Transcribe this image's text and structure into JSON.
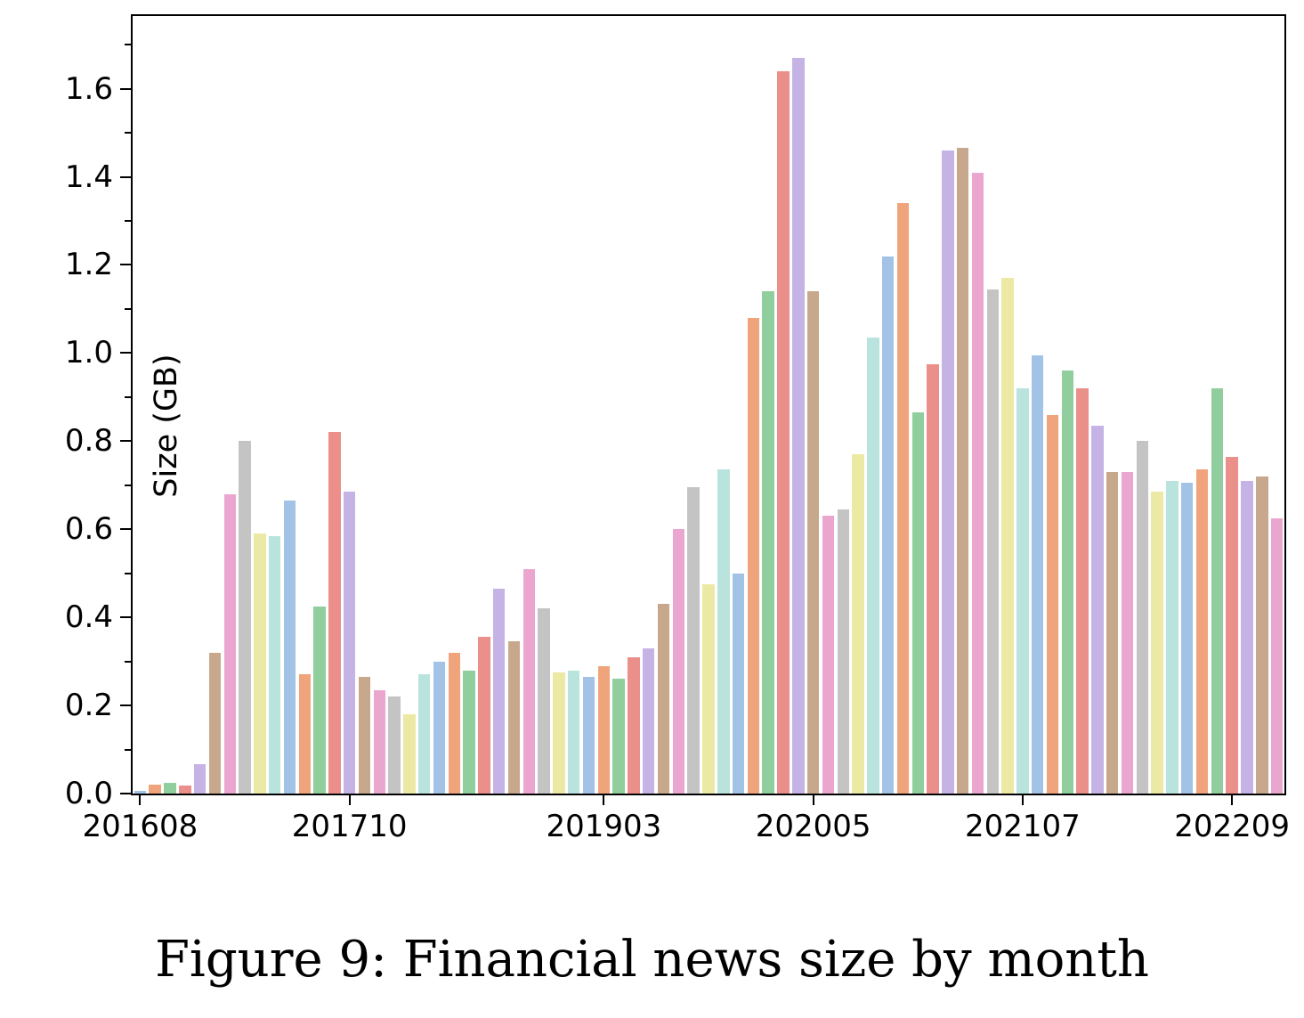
{
  "figure": {
    "caption": "Figure 9: Financial news size by month"
  },
  "chart_data": {
    "type": "bar",
    "title": "",
    "xlabel": "",
    "ylabel": "Size (GB)",
    "ylim": [
      0,
      1.765
    ],
    "grid": false,
    "legend": "none",
    "ytick_labels": [
      "0.0",
      "0.2",
      "0.4",
      "0.6",
      "0.8",
      "1.0",
      "1.2",
      "1.4",
      "1.6"
    ],
    "ytick_values": [
      0.0,
      0.2,
      0.4,
      0.6,
      0.8,
      1.0,
      1.2,
      1.4,
      1.6
    ],
    "ytick_minor_values": [
      0.1,
      0.3,
      0.5,
      0.7,
      0.9,
      1.1,
      1.3,
      1.5,
      1.7
    ],
    "xtick_labels": [
      "201608",
      "201710",
      "201903",
      "202005",
      "202107",
      "202209"
    ],
    "xtick_indices": [
      0,
      14,
      31,
      45,
      59,
      73
    ],
    "categories": [
      "201608",
      "201609",
      "201610",
      "201611",
      "201612",
      "201701",
      "201702",
      "201703",
      "201704",
      "201705",
      "201706",
      "201707",
      "201708",
      "201709",
      "201710",
      "201711",
      "201712",
      "201801",
      "201802",
      "201803",
      "201804",
      "201805",
      "201806",
      "201807",
      "201808",
      "201809",
      "201810",
      "201811",
      "201812",
      "201901",
      "201902",
      "201903",
      "201904",
      "201905",
      "201906",
      "201907",
      "201908",
      "201909",
      "201910",
      "201911",
      "201912",
      "202001",
      "202002",
      "202003",
      "202004",
      "202005",
      "202006",
      "202007",
      "202008",
      "202009",
      "202010",
      "202011",
      "202012",
      "202101",
      "202102",
      "202103",
      "202104",
      "202105",
      "202106",
      "202107",
      "202108",
      "202109",
      "202110",
      "202111",
      "202112",
      "202201",
      "202202",
      "202203",
      "202204",
      "202205",
      "202206",
      "202207",
      "202208",
      "202209",
      "202210",
      "202211",
      "202212"
    ],
    "values": [
      0.007,
      0.02,
      0.024,
      0.018,
      0.066,
      0.32,
      0.68,
      0.8,
      0.59,
      0.585,
      0.665,
      0.27,
      0.425,
      0.82,
      0.685,
      0.265,
      0.235,
      0.22,
      0.18,
      0.27,
      0.3,
      0.32,
      0.28,
      0.355,
      0.465,
      0.345,
      0.51,
      0.42,
      0.275,
      0.28,
      0.265,
      0.29,
      0.26,
      0.31,
      0.33,
      0.43,
      0.6,
      0.695,
      0.475,
      0.735,
      0.5,
      1.08,
      1.14,
      1.64,
      1.67,
      1.14,
      0.63,
      0.645,
      0.77,
      1.035,
      1.22,
      1.34,
      0.865,
      0.975,
      1.46,
      1.465,
      1.41,
      1.145,
      1.17,
      0.92,
      0.995,
      0.86,
      0.96,
      0.92,
      0.835,
      0.73,
      0.73,
      0.8,
      0.685,
      0.71,
      0.705,
      0.735,
      0.92,
      0.765,
      0.71,
      0.72,
      0.625
    ],
    "palette_cycle": [
      "#a2c3e5",
      "#efa47c",
      "#90ce9e",
      "#eb8f8a",
      "#c5b3e5",
      "#c8a88d",
      "#eba6d0",
      "#c4c4c4",
      "#ece9a4",
      "#b9e4dd"
    ],
    "axis_color": "#000000",
    "background_color": "#ffffff"
  }
}
